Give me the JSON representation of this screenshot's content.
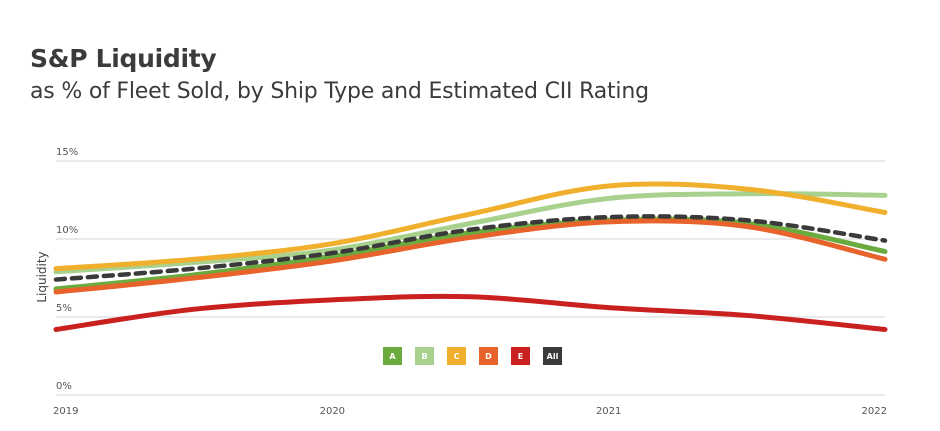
{
  "chart_data": {
    "type": "line",
    "title": "S&P Liquidity",
    "subtitle": "as % of Fleet Sold, by Ship Type and Estimated CII Rating",
    "xlabel": "",
    "ylabel": "Liquidity",
    "x": [
      2019,
      2019.5,
      2020,
      2020.5,
      2021,
      2021.5,
      2022
    ],
    "xticks": [
      "2019",
      "2020",
      "2021",
      "2022"
    ],
    "xlim": [
      2019,
      2022
    ],
    "yticks": [
      "0%",
      "5%",
      "10%",
      "15%"
    ],
    "ylim": [
      0,
      15
    ],
    "grid": "horizontal",
    "legend": "bottom-center",
    "series": [
      {
        "name": "A",
        "color": "#6aaa3f",
        "dashed": false,
        "values": [
          6.8,
          7.7,
          8.9,
          10.4,
          11.2,
          11.0,
          9.2
        ]
      },
      {
        "name": "B",
        "color": "#a8d18d",
        "dashed": false,
        "values": [
          7.9,
          8.5,
          9.3,
          11.0,
          12.6,
          12.9,
          12.8
        ]
      },
      {
        "name": "C",
        "color": "#f0b02d",
        "dashed": false,
        "values": [
          8.1,
          8.7,
          9.7,
          11.6,
          13.4,
          13.2,
          11.7
        ]
      },
      {
        "name": "D",
        "color": "#e8632b",
        "dashed": false,
        "values": [
          6.6,
          7.5,
          8.6,
          10.1,
          11.1,
          10.8,
          8.7
        ]
      },
      {
        "name": "E",
        "color": "#c8211f",
        "dashed": false,
        "values": [
          4.2,
          5.5,
          6.1,
          6.3,
          5.6,
          5.1,
          4.2
        ]
      },
      {
        "name": "All",
        "color": "#3a3a3a",
        "dashed": true,
        "values": [
          7.4,
          8.1,
          9.1,
          10.6,
          11.4,
          11.2,
          9.9
        ]
      }
    ]
  }
}
